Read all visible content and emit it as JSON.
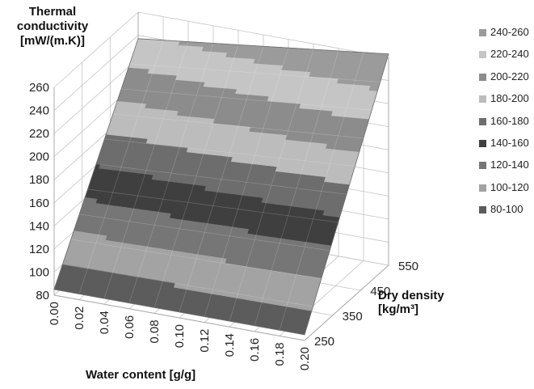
{
  "chart_data": {
    "type": "surface",
    "zlabel": [
      "Thermal",
      "conductivity",
      "[mW/(m.K)]"
    ],
    "xlabel": "Water content [g/g]",
    "ylabel": [
      "Dry density",
      "[kg/m³]"
    ],
    "x_ticks": [
      "0.00",
      "0.02",
      "0.04",
      "0.06",
      "0.08",
      "0.10",
      "0.12",
      "0.14",
      "0.16",
      "0.18",
      "0.20"
    ],
    "y_ticks": [
      "250",
      "350",
      "450",
      "550"
    ],
    "z_ticks": [
      "80",
      "100",
      "120",
      "140",
      "160",
      "180",
      "200",
      "220",
      "240",
      "260"
    ],
    "xlim": [
      0,
      0.2
    ],
    "ylim": [
      250,
      550
    ],
    "zlim": [
      80,
      260
    ],
    "grid": true,
    "legend_position": "right",
    "surface_corners": [
      {
        "water_content": 0.0,
        "dry_density": 250,
        "thermal_conductivity": 85
      },
      {
        "water_content": 0.2,
        "dry_density": 250,
        "thermal_conductivity": 85
      },
      {
        "water_content": 0.0,
        "dry_density": 550,
        "thermal_conductivity": 237
      },
      {
        "water_content": 0.2,
        "dry_density": 550,
        "thermal_conductivity": 263
      }
    ],
    "legend": [
      {
        "label": "240-260",
        "min": 240,
        "max": 260,
        "color": "#9b9b9b"
      },
      {
        "label": "220-240",
        "min": 220,
        "max": 240,
        "color": "#c5c5c5"
      },
      {
        "label": "200-220",
        "min": 200,
        "max": 220,
        "color": "#8c8c8c"
      },
      {
        "label": "180-200",
        "min": 180,
        "max": 200,
        "color": "#bcbcbc"
      },
      {
        "label": "160-180",
        "min": 160,
        "max": 180,
        "color": "#6d6d6d"
      },
      {
        "label": "140-160",
        "min": 140,
        "max": 160,
        "color": "#3f3f3f"
      },
      {
        "label": "120-140",
        "min": 120,
        "max": 140,
        "color": "#767676"
      },
      {
        "label": "100-120",
        "min": 100,
        "max": 120,
        "color": "#a3a3a3"
      },
      {
        "label": "80-100",
        "min": 80,
        "max": 100,
        "color": "#5c5c5c"
      }
    ]
  }
}
